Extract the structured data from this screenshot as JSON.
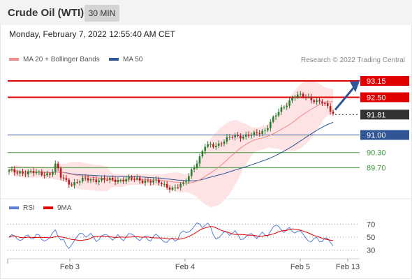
{
  "header": {
    "title": "Crude Oil (WTI)",
    "interval": "30 MIN"
  },
  "datetime": "Monday, February 7, 2022 12:55:40 AM CET",
  "legend": {
    "ma20": {
      "label": "MA 20 + Bollinger Bands",
      "color": "#f08a8a"
    },
    "ma50": {
      "label": "MA 50",
      "color": "#2f5597"
    }
  },
  "credit": "Research © 2022 Trading Central",
  "rsi_legend": {
    "rsi": {
      "label": "RSI",
      "color": "#5b7fd6"
    },
    "ma9": {
      "label": "9MA",
      "color": "#e00000"
    }
  },
  "chart_data": [
    {
      "type": "candlestick",
      "ylim": [
        88.6,
        93.65
      ],
      "current_price": 91.81,
      "levels": [
        {
          "value": 93.15,
          "label": "93.15",
          "color": "#e00000",
          "kind": "resistance"
        },
        {
          "value": 92.5,
          "label": "92.50",
          "color": "#e00000",
          "kind": "resistance"
        },
        {
          "value": 91.81,
          "label": "91.81",
          "color": "#333333",
          "kind": "current"
        },
        {
          "value": 91.0,
          "label": "91.00",
          "color": "#2f5597",
          "kind": "pivot"
        },
        {
          "value": 90.3,
          "label": "90.30",
          "color": "#3a9a3a",
          "kind": "support"
        },
        {
          "value": 89.7,
          "label": "89.70",
          "color": "#3a9a3a",
          "kind": "support"
        }
      ],
      "x_ticks": [
        "Feb 3",
        "Feb 4",
        "Feb 5",
        "Feb 13"
      ],
      "colors": {
        "up": "#2e7d32",
        "down": "#b71c1c",
        "band": "#fde3e3"
      },
      "trend_arrow": "up"
    },
    {
      "type": "line",
      "ylim": [
        20,
        80
      ],
      "yticks": [
        30,
        50,
        70
      ],
      "series": [
        {
          "name": "RSI",
          "color": "#5b7fd6"
        },
        {
          "name": "9MA",
          "color": "#e00000"
        }
      ]
    }
  ]
}
